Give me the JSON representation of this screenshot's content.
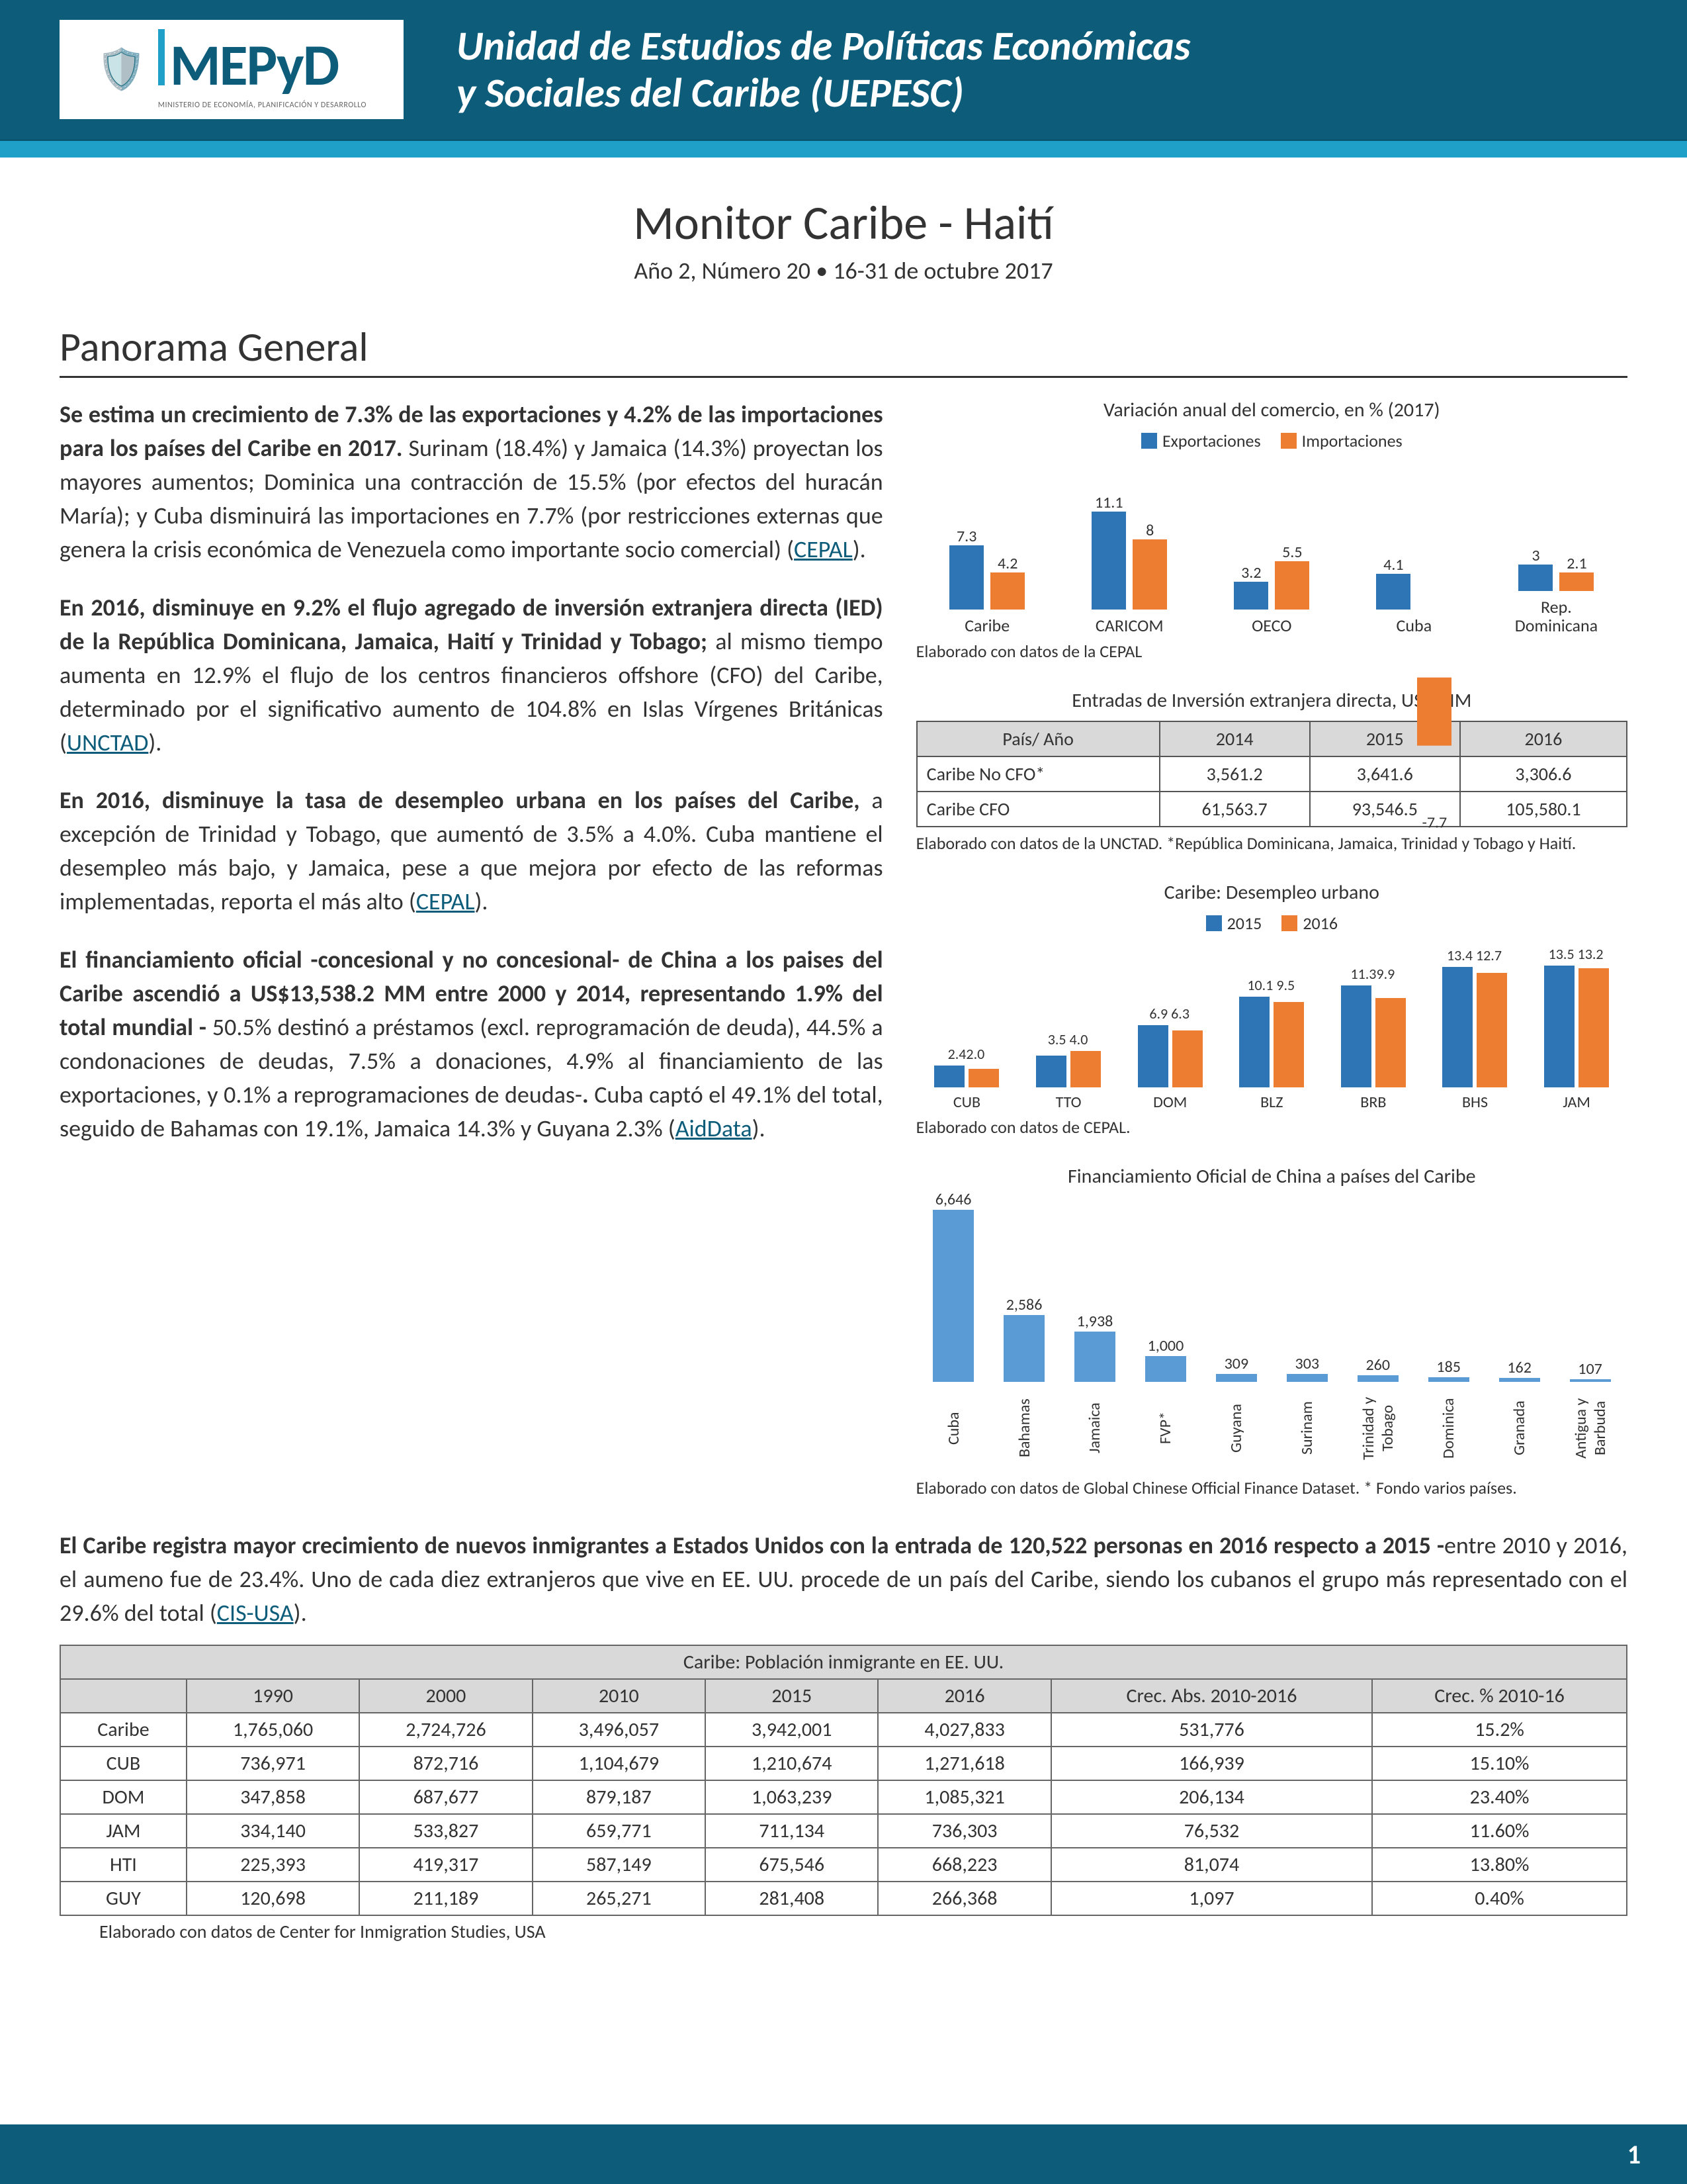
{
  "colors": {
    "band": "#0d5c7a",
    "teal": "#1fa0c9",
    "export": "#2e75b6",
    "import": "#ed7d31",
    "china": "#5b9bd5"
  },
  "header": {
    "logo_main": "MEPyD",
    "logo_sub": "MINISTERIO DE ECONOMÍA, PLANIFICACIÓN Y DESARROLLO",
    "unit_line1": "Unidad de Estudios de Políticas Económicas",
    "unit_line2": "y Sociales del Caribe (UEPESC)"
  },
  "doc_title": "Monitor Caribe - Haití",
  "doc_sub": "Año 2, Número 20 • 16-31 de octubre 2017",
  "section1": "Panorama General",
  "paras": {
    "p1_bold": "Se estima un crecimiento de 7.3% de las exportaciones y 4.2% de las importaciones para los países del Caribe en 2017.",
    "p1_rest": " Surinam (18.4%) y Jamaica (14.3%) proyectan los mayores aumentos; Dominica  una contracción de 15.5% (por efectos del huracán María); y Cuba disminuirá las importaciones en 7.7% (por restricciones externas que genera la crisis económica de Venezuela como importante socio comercial) (",
    "p1_link": "CEPAL",
    "p2_bold": "En 2016, disminuye en 9.2% el flujo agregado de inversión extranjera directa (IED) de la República Dominicana, Jamaica, Haití y Trinidad y Tobago;",
    "p2_rest": " al mismo tiempo aumenta en 12.9% el flujo de los centros financieros offshore (CFO) del Caribe, determinado por el significativo aumento de 104.8% en Islas Vírgenes Británicas (",
    "p2_link": "UNCTAD",
    "p3_bold": "En 2016, disminuye la tasa de desempleo urbana en los países del Caribe,",
    "p3_rest": " a excepción de Trinidad y Tobago, que aumentó de 3.5% a 4.0%. Cuba mantiene el desempleo más bajo, y Jamaica, pese a que mejora por efecto de las reformas implementadas, reporta el  más alto (",
    "p3_link": "CEPAL",
    "p4_bold": "El financiamiento oficial -concesional y no concesional- de China a los paises del Caribe ascendió a US$13,538.2 MM entre 2000 y 2014, representando 1.9% del total mundial -",
    "p4_rest": " 50.5% destinó a préstamos (excl. reprogramación de deuda), 44.5% a condonaciones de deudas,  7.5% a donaciones, 4.9% al financiamiento de las exportaciones, y 0.1% a reprogramaciones de deudas-",
    "p4_mid": " Cuba captó el 49.1% del total, seguido de Bahamas con 19.1%, Jamaica 14.3% y Guyana 2.3% (",
    "p4_link": "AidData",
    "p5_bold": "El Caribe registra mayor crecimiento de nuevos inmigrantes a Estados Unidos con la entrada de 120,522 personas en 2016 respecto a 2015 -",
    "p5_rest": "entre 2010 y 2016, el aumeno fue de 23.4%. Uno de cada diez extranjeros que vive en EE. UU. procede de un país del Caribe, siendo los cubanos el grupo más representado con el 29.6% del total (",
    "p5_link": "CIS-USA"
  },
  "chart1": {
    "title": "Variación anual del comercio, en % (2017)",
    "legend_a": "Exportaciones",
    "legend_b": "Importaciones",
    "categories": [
      "Caribe",
      "CARICOM",
      "OECO",
      "Cuba",
      "Rep. Dominicana"
    ],
    "exports": [
      7.3,
      11.1,
      3.2,
      4.1,
      3
    ],
    "imports": [
      4.2,
      8,
      5.5,
      -7.7,
      2.1
    ],
    "max": 12,
    "footnote": "Elaborado con datos de la CEPAL"
  },
  "table_fdi": {
    "title": "Entradas de Inversión extranjera directa, US$ MM",
    "headers": [
      "País/ Año",
      "2014",
      "2015",
      "2016"
    ],
    "rows": [
      [
        "Caribe No CFO*",
        "3,561.2",
        "3,641.6",
        "3,306.6"
      ],
      [
        "Caribe CFO",
        "61,563.7",
        "93,546.5",
        "105,580.1"
      ]
    ],
    "footnote": "Elaborado con datos de la UNCTAD. *República Dominicana, Jamaica, Trinidad y Tobago y Haití."
  },
  "chart3": {
    "title": "Caribe: Desempleo urbano",
    "legend_a": "2015",
    "legend_b": "2016",
    "categories": [
      "CUB",
      "TTO",
      "DOM",
      "BLZ",
      "BRB",
      "BHS",
      "JAM"
    ],
    "y2015": [
      2.4,
      3.5,
      6.9,
      10.1,
      11.3,
      13.4,
      13.5
    ],
    "y2016": [
      2.0,
      4.0,
      6.3,
      9.5,
      9.9,
      12.7,
      13.2
    ],
    "value_labels": [
      "2.42.0",
      "3.5 4.0",
      "6.9 6.3",
      "10.1 9.5",
      "11.39.9",
      "13.4 12.7",
      "13.5 13.2"
    ],
    "max": 14,
    "footnote": "Elaborado con datos de CEPAL."
  },
  "chart4": {
    "title": "Financiamiento Oficial de China a países del Caribe",
    "categories": [
      "Cuba",
      "Bahamas",
      "Jamaica",
      "FVP*",
      "Guyana",
      "Surinam",
      "Trinidad y Tobago",
      "Dominica",
      "Granada",
      "Antigua y Barbuda"
    ],
    "values": [
      6646,
      2586,
      1938,
      1000,
      309,
      303,
      260,
      185,
      162,
      107
    ],
    "max": 6646,
    "footnote": "Elaborado con datos de Global Chinese Official Finance Dataset.  * Fondo varios países."
  },
  "big_table": {
    "title": "Caribe: Población inmigrante en EE. UU.",
    "headers": [
      "",
      "1990",
      "2000",
      "2010",
      "2015",
      "2016",
      "Crec. Abs. 2010-2016",
      "Crec. % 2010-16"
    ],
    "rows": [
      [
        "Caribe",
        "1,765,060",
        "2,724,726",
        "3,496,057",
        "3,942,001",
        "4,027,833",
        "531,776",
        "15.2%"
      ],
      [
        "CUB",
        "736,971",
        "872,716",
        "1,104,679",
        "1,210,674",
        "1,271,618",
        "166,939",
        "15.10%"
      ],
      [
        "DOM",
        "347,858",
        "687,677",
        "879,187",
        "1,063,239",
        "1,085,321",
        "206,134",
        "23.40%"
      ],
      [
        "JAM",
        "334,140",
        "533,827",
        "659,771",
        "711,134",
        "736,303",
        "76,532",
        "11.60%"
      ],
      [
        "HTI",
        "225,393",
        "419,317",
        "587,149",
        "675,546",
        "668,223",
        "81,074",
        "13.80%"
      ],
      [
        "GUY",
        "120,698",
        "211,189",
        "265,271",
        "281,408",
        "266,368",
        "1,097",
        "0.40%"
      ]
    ],
    "footnote": "Elaborado con datos de Center for Inmigration Studies, USA"
  },
  "page_number": "1"
}
